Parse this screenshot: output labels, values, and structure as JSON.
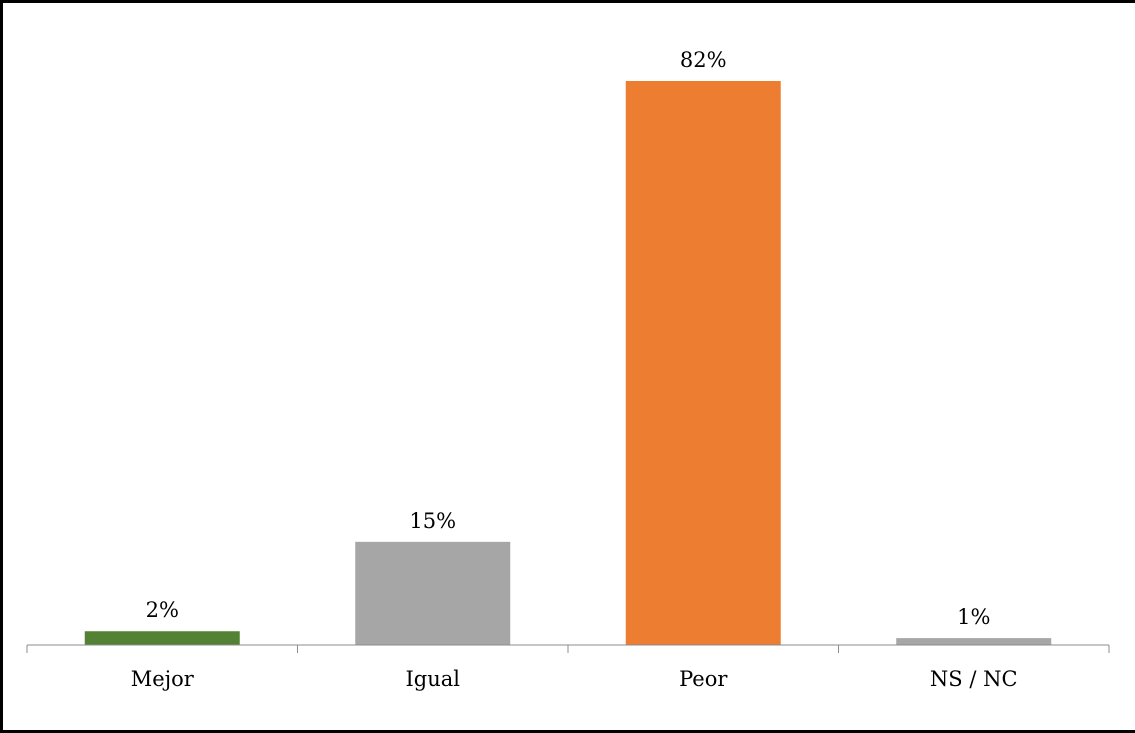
{
  "chart_data": {
    "type": "bar",
    "title": "",
    "xlabel": "",
    "ylabel": "",
    "categories": [
      "Mejor",
      "Igual",
      "Peor",
      "NS / NC"
    ],
    "values": [
      2,
      15,
      82,
      1
    ],
    "data_labels": [
      "2%",
      "15%",
      "82%",
      "1%"
    ],
    "colors": [
      "#548235",
      "#a6a6a6",
      "#ed7d31",
      "#a6a6a6"
    ],
    "ylim": [
      0,
      82
    ],
    "y_axis_visible": false,
    "grid": false,
    "legend": "none"
  }
}
